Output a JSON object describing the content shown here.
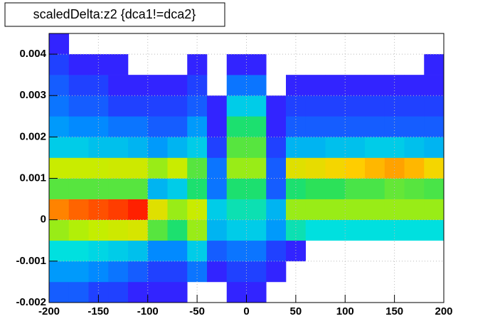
{
  "chart_data": {
    "type": "heatmap",
    "title": "scaledDelta:z2 {dca1!=dca2}",
    "xlim": [
      -200,
      200
    ],
    "ylim": [
      -0.002,
      0.0045
    ],
    "xticks": [
      -200,
      -150,
      -100,
      -50,
      0,
      50,
      100,
      150,
      200
    ],
    "yticks": [
      -0.002,
      -0.001,
      0,
      0.001,
      0.002,
      0.003,
      0.004
    ],
    "grid": true,
    "palette": [
      "#6a00ff",
      "#2a2aff",
      "#0090ff",
      "#00e0e0",
      "#20e060",
      "#c0f000",
      "#ffd000",
      "#ff2000"
    ],
    "xbins": [
      -200,
      -180,
      -160,
      -140,
      -120,
      -100,
      -80,
      -60,
      -40,
      -20,
      0,
      20,
      40,
      60,
      80,
      100,
      120,
      140,
      160,
      180,
      200
    ],
    "ybins": [
      -0.002,
      -0.0015,
      -0.001,
      -0.0005,
      0,
      0.0005,
      0.001,
      0.0015,
      0.002,
      0.0025,
      0.003,
      0.0035,
      0.004,
      0.0045
    ],
    "z": [
      [
        3,
        3,
        2,
        2,
        1,
        1,
        1,
        0,
        0,
        1,
        1,
        0,
        0,
        0,
        0,
        0,
        0,
        0,
        0,
        0
      ],
      [
        6,
        6,
        5,
        4,
        3,
        2,
        2,
        4,
        1,
        2,
        2,
        1,
        0,
        0,
        0,
        0,
        0,
        0,
        0,
        0
      ],
      [
        12,
        12,
        11,
        10,
        9,
        5,
        5,
        10,
        3,
        4,
        4,
        2,
        1,
        0,
        0,
        0,
        0,
        0,
        0,
        0
      ],
      [
        30,
        32,
        34,
        36,
        38,
        25,
        20,
        30,
        8,
        10,
        10,
        6,
        15,
        12,
        12,
        12,
        12,
        12,
        12,
        12
      ],
      [
        55,
        58,
        60,
        62,
        65,
        40,
        30,
        35,
        10,
        15,
        15,
        8,
        30,
        30,
        30,
        30,
        30,
        30,
        30,
        30
      ],
      [
        25,
        25,
        25,
        25,
        25,
        8,
        10,
        20,
        4,
        20,
        20,
        3,
        20,
        22,
        22,
        24,
        24,
        26,
        25,
        24
      ],
      [
        35,
        35,
        35,
        36,
        36,
        30,
        35,
        25,
        4,
        30,
        30,
        3,
        40,
        42,
        45,
        48,
        50,
        52,
        50,
        45
      ],
      [
        10,
        10,
        9,
        9,
        8,
        6,
        8,
        10,
        2,
        25,
        25,
        2,
        8,
        8,
        9,
        9,
        10,
        10,
        9,
        8
      ],
      [
        6,
        5,
        5,
        4,
        4,
        3,
        3,
        6,
        1,
        20,
        20,
        1,
        3,
        3,
        3,
        3,
        3,
        3,
        3,
        3
      ],
      [
        4,
        3,
        3,
        2,
        2,
        2,
        2,
        3,
        1,
        10,
        10,
        1,
        2,
        2,
        2,
        2,
        2,
        2,
        2,
        2
      ],
      [
        3,
        2,
        2,
        1,
        1,
        1,
        1,
        2,
        0,
        4,
        4,
        0,
        1,
        1,
        1,
        1,
        1,
        1,
        1,
        1
      ],
      [
        2,
        1,
        1,
        1,
        0,
        0,
        0,
        1,
        0,
        1,
        1,
        0,
        0,
        0,
        0,
        0,
        0,
        0,
        0,
        1
      ],
      [
        1,
        0,
        0,
        0,
        0,
        0,
        0,
        0,
        0,
        0,
        0,
        0,
        0,
        0,
        0,
        0,
        0,
        0,
        0,
        0
      ]
    ]
  }
}
